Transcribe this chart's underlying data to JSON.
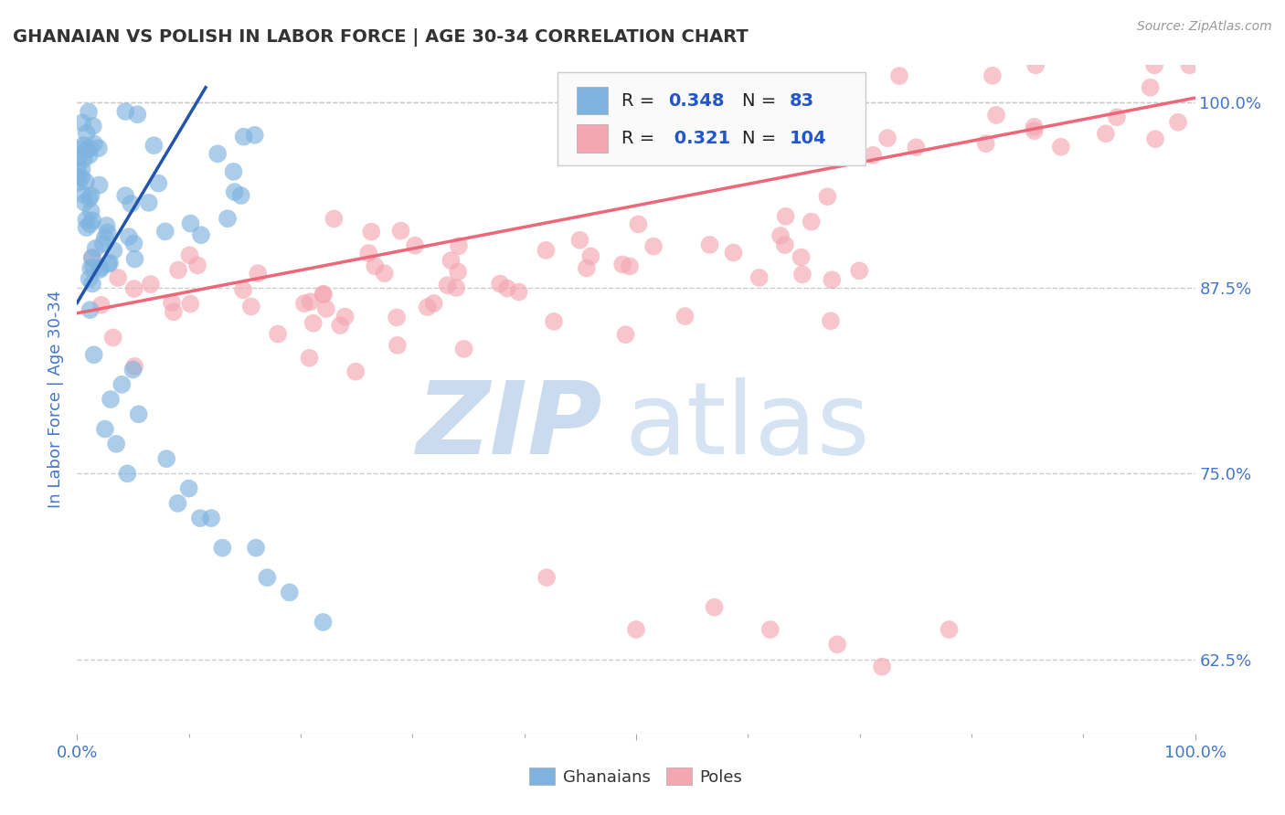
{
  "title": "GHANAIAN VS POLISH IN LABOR FORCE | AGE 30-34 CORRELATION CHART",
  "source_text": "Source: ZipAtlas.com",
  "ylabel": "In Labor Force | Age 30-34",
  "xmin": 0.0,
  "xmax": 1.0,
  "ymin": 0.575,
  "ymax": 1.025,
  "x_tick_labels": [
    "0.0%",
    "100.0%"
  ],
  "y_tick_labels": [
    "62.5%",
    "75.0%",
    "87.5%",
    "100.0%"
  ],
  "y_tick_values": [
    0.625,
    0.75,
    0.875,
    1.0
  ],
  "blue_color": "#7EB3E0",
  "pink_color": "#F4A7B0",
  "line_blue": "#2255AA",
  "line_pink": "#EE6677",
  "background_color": "#FFFFFF",
  "grid_color": "#CCCCCC",
  "title_color": "#333333",
  "axis_label_color": "#4477CC",
  "watermark_zip_color": "#C5D8EE",
  "watermark_atlas_color": "#C5D8EE",
  "legend_box_color": "#FAFAFA",
  "blue_line_x0": 0.0,
  "blue_line_x1": 0.115,
  "blue_line_y0": 0.865,
  "blue_line_y1": 1.01,
  "pink_line_x0": 0.0,
  "pink_line_x1": 1.0,
  "pink_line_y0": 0.858,
  "pink_line_y1": 1.003
}
